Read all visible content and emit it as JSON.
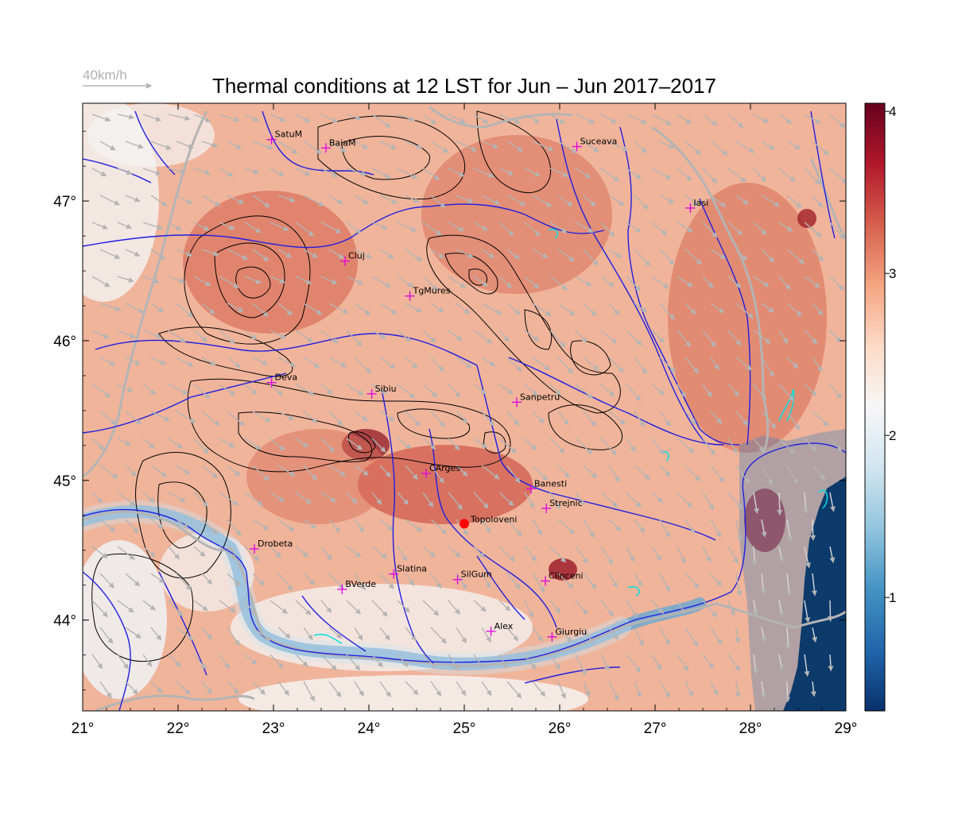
{
  "title": "Thermal conditions at 12 LST for Jun – Jun 2017–2017",
  "wind_reference": {
    "label": "40km/h"
  },
  "axes": {
    "x_ticks": [
      21,
      22,
      23,
      24,
      25,
      26,
      27,
      28,
      29
    ],
    "x_tick_labels": [
      "21°",
      "22°",
      "23°",
      "24°",
      "25°",
      "26°",
      "27°",
      "28°",
      "29°"
    ],
    "y_ticks": [
      44,
      45,
      46,
      47
    ],
    "y_tick_labels": [
      "44°",
      "45°",
      "46°",
      "47°"
    ],
    "lon_range": [
      21,
      29
    ],
    "lat_range": [
      43.35,
      47.7
    ]
  },
  "colorbar": {
    "range": [
      0.3,
      4.05
    ],
    "ticks": [
      1,
      2,
      3,
      4
    ],
    "tick_labels": [
      "1",
      "2",
      "3",
      "4"
    ],
    "colors": [
      "#08306b",
      "#2166ac",
      "#4393c3",
      "#92c5de",
      "#d1e5f0",
      "#f7f7f7",
      "#fddbc7",
      "#f4a582",
      "#d6604d",
      "#b2182b",
      "#67001f"
    ]
  },
  "colors": {
    "rivers": "#1f1fe0",
    "borders": "#b4b4b4",
    "contours": "#000000",
    "wind_arrows": "#b4b4b4",
    "city_marker": "#e000e0",
    "target_marker": "#ff0000",
    "sea": "#0b3a6b",
    "lakes": "#00e0e0"
  },
  "cities": [
    {
      "name": "SatuM",
      "lon": 22.98,
      "lat": 47.44
    },
    {
      "name": "BaiaM",
      "lon": 23.55,
      "lat": 47.38
    },
    {
      "name": "Suceava",
      "lon": 26.18,
      "lat": 47.39
    },
    {
      "name": "Iasi",
      "lon": 27.37,
      "lat": 46.95
    },
    {
      "name": "Cluj",
      "lon": 23.75,
      "lat": 46.57
    },
    {
      "name": "TgMures",
      "lon": 24.43,
      "lat": 46.32
    },
    {
      "name": "Deva",
      "lon": 22.98,
      "lat": 45.7
    },
    {
      "name": "Sibiu",
      "lon": 24.03,
      "lat": 45.62
    },
    {
      "name": "Sanpetru",
      "lon": 25.55,
      "lat": 45.56
    },
    {
      "name": "CArges",
      "lon": 24.6,
      "lat": 45.05
    },
    {
      "name": "Banesti",
      "lon": 25.7,
      "lat": 44.94
    },
    {
      "name": "Strejnic",
      "lon": 25.86,
      "lat": 44.8
    },
    {
      "name": "Drobeta",
      "lon": 22.8,
      "lat": 44.51
    },
    {
      "name": "Slatina",
      "lon": 24.26,
      "lat": 44.33
    },
    {
      "name": "SilGum",
      "lon": 24.93,
      "lat": 44.29
    },
    {
      "name": "Clinceni",
      "lon": 25.85,
      "lat": 44.28
    },
    {
      "name": "BVerde",
      "lon": 23.72,
      "lat": 44.22
    },
    {
      "name": "Alex",
      "lon": 25.28,
      "lat": 43.92
    },
    {
      "name": "Giurgiu",
      "lon": 25.92,
      "lat": 43.88
    }
  ],
  "target_site": {
    "name": "Topoloveni",
    "lon": 25.0,
    "lat": 44.69
  }
}
